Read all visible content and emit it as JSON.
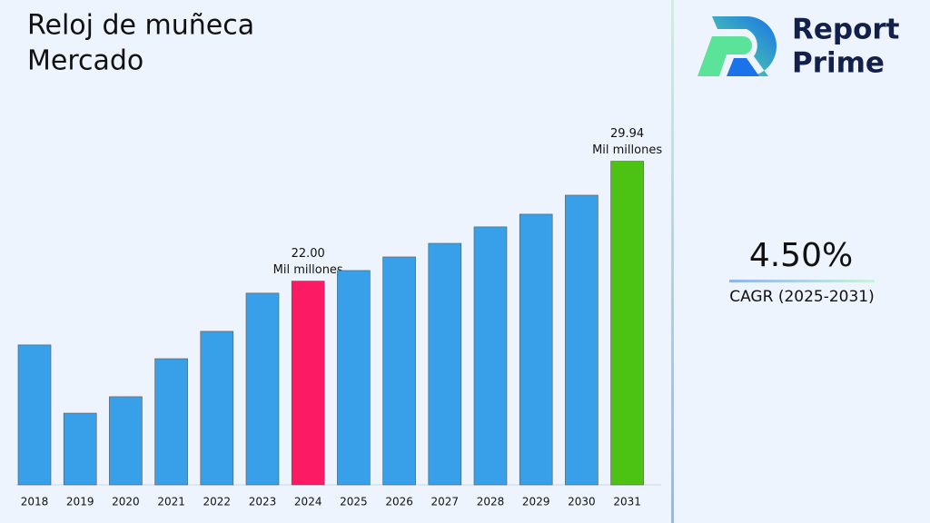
{
  "chart_data": {
    "type": "bar",
    "title": [
      "Reloj de muñeca",
      "Mercado"
    ],
    "categories": [
      "2018",
      "2019",
      "2020",
      "2021",
      "2022",
      "2023",
      "2024",
      "2025",
      "2026",
      "2027",
      "2028",
      "2029",
      "2030",
      "2031"
    ],
    "values": [
      17.77,
      13.25,
      14.34,
      16.86,
      18.67,
      21.2,
      22.0,
      22.7,
      23.6,
      24.5,
      25.59,
      26.43,
      27.69,
      29.94
    ],
    "value_labels": [
      null,
      null,
      null,
      null,
      null,
      null,
      "22.00",
      null,
      null,
      null,
      null,
      null,
      null,
      "29.94"
    ],
    "value_unit": "Mil millones",
    "colors": [
      "#38a0e8",
      "#38a0e8",
      "#38a0e8",
      "#38a0e8",
      "#38a0e8",
      "#38a0e8",
      "#fc1a64",
      "#38a0e8",
      "#38a0e8",
      "#38a0e8",
      "#38a0e8",
      "#38a0e8",
      "#38a0e8",
      "#4cc312"
    ],
    "ylim": [
      8.5,
      32.2
    ]
  },
  "brand": {
    "name": [
      "Report",
      "Prime"
    ]
  },
  "cagr": {
    "value": "4.50%",
    "label": "CAGR (2025-2031)"
  }
}
